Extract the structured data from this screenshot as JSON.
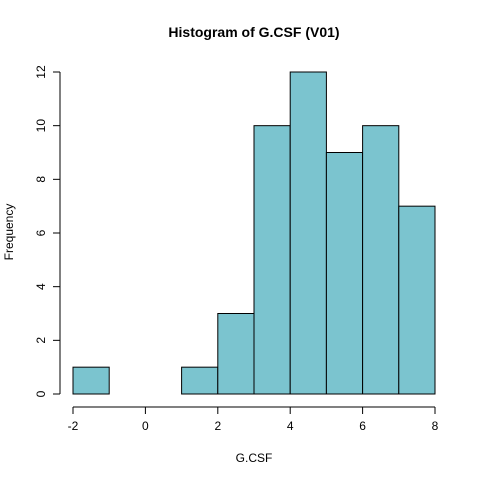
{
  "chart_data": {
    "type": "bar",
    "subtype": "histogram",
    "title": "Histogram of G.CSF (V01)",
    "xlabel": "G.CSF",
    "ylabel": "Frequency",
    "bins": [
      {
        "from": -2,
        "to": -1,
        "count": 1
      },
      {
        "from": -1,
        "to": 0,
        "count": 0
      },
      {
        "from": 0,
        "to": 1,
        "count": 0
      },
      {
        "from": 1,
        "to": 2,
        "count": 1
      },
      {
        "from": 2,
        "to": 3,
        "count": 3
      },
      {
        "from": 3,
        "to": 4,
        "count": 10
      },
      {
        "from": 4,
        "to": 5,
        "count": 12
      },
      {
        "from": 5,
        "to": 6,
        "count": 9
      },
      {
        "from": 6,
        "to": 7,
        "count": 10
      },
      {
        "from": 7,
        "to": 8,
        "count": 7
      }
    ],
    "xlim": [
      -2,
      8
    ],
    "ylim": [
      0,
      12
    ],
    "xticks": [
      -2,
      0,
      2,
      4,
      6,
      8
    ],
    "yticks": [
      0,
      2,
      4,
      6,
      8,
      10,
      12
    ],
    "bar_color": "#7bc4cf",
    "grid": false,
    "legend": "none"
  }
}
